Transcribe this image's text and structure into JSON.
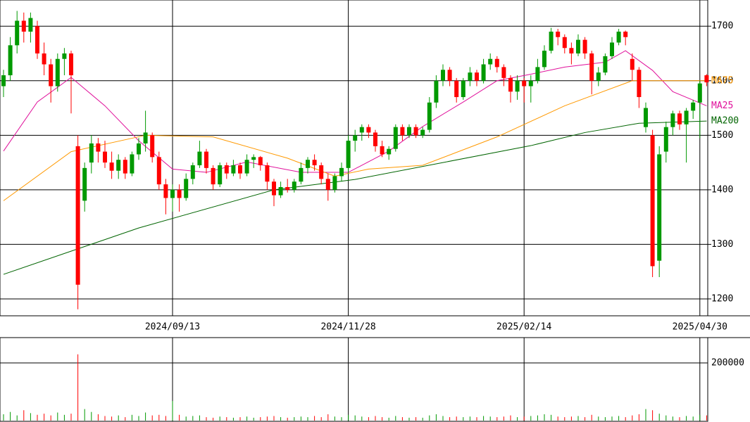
{
  "chart_data": {
    "type": "candlestick",
    "categories": [
      null,
      null,
      null,
      null,
      null,
      null,
      null,
      null,
      null,
      null,
      null,
      null,
      null,
      null,
      null,
      null,
      null,
      null,
      null,
      null,
      null,
      null,
      null,
      null,
      null,
      "2024/09/13",
      null,
      null,
      null,
      null,
      null,
      null,
      null,
      null,
      null,
      null,
      null,
      null,
      null,
      null,
      null,
      null,
      null,
      null,
      null,
      null,
      null,
      null,
      null,
      null,
      null,
      "2024/11/28",
      null,
      null,
      null,
      null,
      null,
      null,
      null,
      null,
      null,
      null,
      null,
      null,
      null,
      null,
      null,
      null,
      null,
      null,
      null,
      null,
      null,
      null,
      null,
      null,
      null,
      "2025/02/14",
      null,
      null,
      null,
      null,
      null,
      null,
      null,
      null,
      null,
      null,
      null,
      null,
      null,
      null,
      null,
      null,
      null,
      null,
      null,
      null,
      null,
      null,
      null,
      null,
      null,
      "2025/04/30",
      null
    ],
    "candles": [
      [
        1590,
        1620,
        1570,
        1610
      ],
      [
        1610,
        1680,
        1600,
        1665
      ],
      [
        1665,
        1728,
        1650,
        1710
      ],
      [
        1710,
        1725,
        1670,
        1690
      ],
      [
        1690,
        1725,
        1670,
        1715
      ],
      [
        1700,
        1710,
        1640,
        1650
      ],
      [
        1650,
        1670,
        1610,
        1630
      ],
      [
        1630,
        1640,
        1560,
        1590
      ],
      [
        1590,
        1650,
        1580,
        1640
      ],
      [
        1640,
        1660,
        1610,
        1650
      ],
      [
        1650,
        1655,
        1540,
        1610
      ],
      [
        1480,
        1500,
        1181,
        1226
      ],
      [
        1380,
        1450,
        1360,
        1440
      ],
      [
        1450,
        1500,
        1430,
        1485
      ],
      [
        1485,
        1495,
        1450,
        1470
      ],
      [
        1470,
        1490,
        1440,
        1450
      ],
      [
        1450,
        1470,
        1420,
        1435
      ],
      [
        1435,
        1465,
        1420,
        1455
      ],
      [
        1455,
        1460,
        1420,
        1430
      ],
      [
        1430,
        1470,
        1425,
        1465
      ],
      [
        1465,
        1495,
        1455,
        1485
      ],
      [
        1485,
        1545,
        1470,
        1505
      ],
      [
        1500,
        1505,
        1450,
        1460
      ],
      [
        1460,
        1470,
        1400,
        1410
      ],
      [
        1410,
        1420,
        1355,
        1385
      ],
      [
        1385,
        1410,
        1360,
        1400
      ],
      [
        1400,
        1410,
        1360,
        1385
      ],
      [
        1385,
        1430,
        1380,
        1420
      ],
      [
        1420,
        1450,
        1410,
        1445
      ],
      [
        1445,
        1490,
        1440,
        1470
      ],
      [
        1470,
        1475,
        1430,
        1440
      ],
      [
        1440,
        1445,
        1400,
        1410
      ],
      [
        1410,
        1450,
        1405,
        1445
      ],
      [
        1445,
        1450,
        1420,
        1430
      ],
      [
        1430,
        1455,
        1425,
        1445
      ],
      [
        1445,
        1450,
        1420,
        1430
      ],
      [
        1430,
        1465,
        1425,
        1455
      ],
      [
        1455,
        1465,
        1440,
        1460
      ],
      [
        1460,
        1462,
        1435,
        1445
      ],
      [
        1445,
        1450,
        1400,
        1415
      ],
      [
        1415,
        1420,
        1370,
        1390
      ],
      [
        1390,
        1415,
        1385,
        1405
      ],
      [
        1405,
        1420,
        1395,
        1400
      ],
      [
        1400,
        1420,
        1395,
        1415
      ],
      [
        1415,
        1450,
        1410,
        1440
      ],
      [
        1440,
        1460,
        1430,
        1455
      ],
      [
        1455,
        1465,
        1435,
        1445
      ],
      [
        1445,
        1450,
        1410,
        1420
      ],
      [
        1420,
        1430,
        1380,
        1400
      ],
      [
        1400,
        1430,
        1395,
        1425
      ],
      [
        1425,
        1450,
        1415,
        1440
      ],
      [
        1440,
        1500,
        1430,
        1490
      ],
      [
        1490,
        1510,
        1470,
        1500
      ],
      [
        1505,
        1520,
        1490,
        1515
      ],
      [
        1515,
        1520,
        1495,
        1505
      ],
      [
        1505,
        1510,
        1470,
        1480
      ],
      [
        1480,
        1490,
        1460,
        1465
      ],
      [
        1465,
        1480,
        1455,
        1475
      ],
      [
        1475,
        1520,
        1470,
        1515
      ],
      [
        1515,
        1520,
        1490,
        1500
      ],
      [
        1500,
        1520,
        1495,
        1515
      ],
      [
        1515,
        1520,
        1495,
        1500
      ],
      [
        1500,
        1515,
        1495,
        1510
      ],
      [
        1510,
        1570,
        1505,
        1560
      ],
      [
        1560,
        1610,
        1550,
        1600
      ],
      [
        1600,
        1630,
        1590,
        1620
      ],
      [
        1620,
        1625,
        1590,
        1600
      ],
      [
        1600,
        1605,
        1560,
        1570
      ],
      [
        1570,
        1605,
        1565,
        1600
      ],
      [
        1600,
        1625,
        1590,
        1615
      ],
      [
        1615,
        1620,
        1590,
        1600
      ],
      [
        1600,
        1640,
        1595,
        1630
      ],
      [
        1630,
        1650,
        1620,
        1640
      ],
      [
        1640,
        1645,
        1615,
        1625
      ],
      [
        1625,
        1630,
        1590,
        1605
      ],
      [
        1605,
        1610,
        1560,
        1580
      ],
      [
        1580,
        1610,
        1565,
        1600
      ],
      [
        1600,
        1605,
        1560,
        1590
      ],
      [
        1590,
        1610,
        1560,
        1600
      ],
      [
        1600,
        1640,
        1595,
        1625
      ],
      [
        1625,
        1665,
        1620,
        1655
      ],
      [
        1655,
        1697,
        1650,
        1690
      ],
      [
        1690,
        1695,
        1665,
        1680
      ],
      [
        1680,
        1685,
        1650,
        1660
      ],
      [
        1660,
        1670,
        1630,
        1650
      ],
      [
        1650,
        1685,
        1645,
        1675
      ],
      [
        1675,
        1680,
        1640,
        1650
      ],
      [
        1650,
        1655,
        1575,
        1600
      ],
      [
        1600,
        1625,
        1590,
        1615
      ],
      [
        1615,
        1650,
        1610,
        1645
      ],
      [
        1645,
        1680,
        1640,
        1670
      ],
      [
        1670,
        1695,
        1665,
        1690
      ],
      [
        1690,
        1692,
        1665,
        1680
      ],
      [
        1640,
        1650,
        1600,
        1620
      ],
      [
        1620,
        1625,
        1550,
        1570
      ],
      [
        1515,
        1560,
        1505,
        1550
      ],
      [
        1500,
        1510,
        1240,
        1260
      ],
      [
        1270,
        1480,
        1240,
        1465
      ],
      [
        1470,
        1525,
        1450,
        1515
      ],
      [
        1515,
        1545,
        1500,
        1540
      ],
      [
        1540,
        1545,
        1510,
        1520
      ],
      [
        1520,
        1550,
        1450,
        1545
      ],
      [
        1545,
        1565,
        1530,
        1560
      ],
      [
        1560,
        1600,
        1495,
        1595
      ],
      [
        1610,
        1612,
        1590,
        1597
      ]
    ],
    "volume": [
      22000,
      30000,
      18000,
      36000,
      26000,
      20000,
      24000,
      18000,
      28000,
      20000,
      24000,
      230000,
      40000,
      30000,
      22000,
      16000,
      14000,
      18000,
      12000,
      20000,
      16000,
      28000,
      18000,
      20000,
      16000,
      68000,
      20000,
      14000,
      16000,
      18000,
      12000,
      10000,
      14000,
      12000,
      10000,
      12000,
      14000,
      10000,
      12000,
      14000,
      16000,
      12000,
      10000,
      12000,
      14000,
      12000,
      16000,
      12000,
      22000,
      14000,
      12000,
      20000,
      18000,
      14000,
      12000,
      16000,
      12000,
      10000,
      16000,
      12000,
      10000,
      12000,
      10000,
      18000,
      22000,
      16000,
      12000,
      14000,
      12000,
      14000,
      12000,
      16000,
      14000,
      12000,
      14000,
      18000,
      12000,
      14000,
      16000,
      18000,
      22000,
      20000,
      14000,
      12000,
      14000,
      16000,
      12000,
      20000,
      14000,
      12000,
      14000,
      16000,
      12000,
      18000,
      22000,
      40000,
      36000,
      24000,
      18000,
      14000,
      12000,
      16000,
      14000,
      20000,
      18000
    ],
    "ma_series": [
      {
        "name": "MA25",
        "color": "#e0109b",
        "x": [
          0,
          5,
          10,
          15,
          20,
          25,
          30,
          36,
          44,
          51,
          57,
          62,
          68,
          73,
          78,
          83,
          89,
          92,
          96,
          99,
          104
        ],
        "values": [
          1471,
          1561,
          1606,
          1554,
          1490,
          1438,
          1432,
          1451,
          1432,
          1432,
          1471,
          1516,
          1561,
          1600,
          1612,
          1625,
          1634,
          1655,
          1619,
          1580,
          1554
        ]
      },
      {
        "name": "MA75",
        "color": "#ff9900",
        "x": [
          0,
          10,
          21,
          31,
          42,
          49,
          54,
          62,
          73,
          83,
          93,
          104
        ],
        "values": [
          1380,
          1470,
          1500,
          1497,
          1458,
          1425,
          1438,
          1445,
          1497,
          1554,
          1600,
          1600
        ]
      },
      {
        "name": "MA200",
        "color": "#006400",
        "x": [
          0,
          20,
          40,
          52,
          65,
          78,
          86,
          94,
          104
        ],
        "values": [
          1245,
          1330,
          1400,
          1419,
          1450,
          1481,
          1505,
          1522,
          1526
        ]
      }
    ],
    "up_color": "#009900",
    "down_color": "#ff0000",
    "ylim": [
      1169,
      1748
    ],
    "yticks": [
      1200,
      1300,
      1400,
      1500,
      1600,
      1700
    ],
    "vlim": [
      0,
      288000
    ],
    "vticks": [
      200000
    ],
    "grid": true
  }
}
